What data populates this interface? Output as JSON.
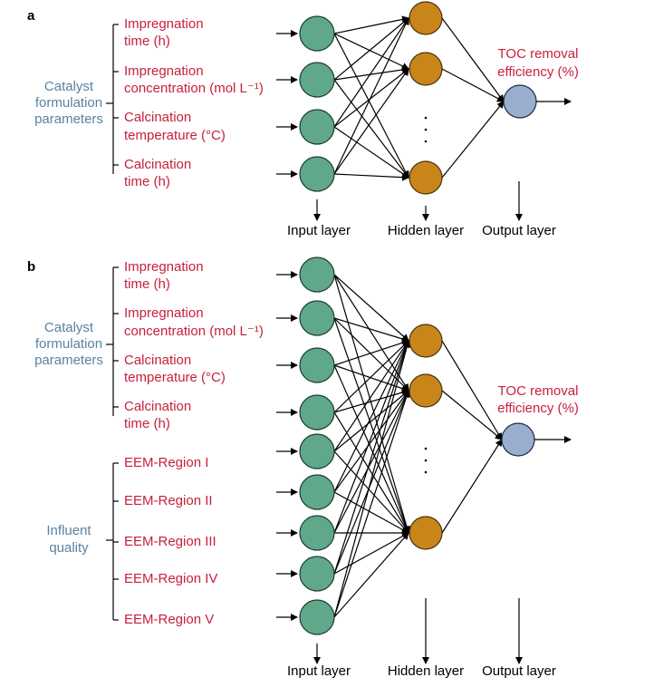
{
  "panels": [
    {
      "label": "a",
      "groups": [
        {
          "label": [
            "Catalyst",
            "formulation",
            "parameters"
          ],
          "inputs": [
            [
              "Impregnation",
              "time (h)"
            ],
            [
              "Impregnation",
              "concentration (mol L⁻¹)"
            ],
            [
              "Calcination",
              "temperature (°C)"
            ],
            [
              "Calcination",
              "time (h)"
            ]
          ]
        }
      ],
      "output": [
        "TOC removal",
        "efficiency (%)"
      ],
      "layers": [
        "Input layer",
        "Hidden layer",
        "Output layer"
      ]
    },
    {
      "label": "b",
      "groups": [
        {
          "label": [
            "Catalyst",
            "formulation",
            "parameters"
          ],
          "inputs": [
            [
              "Impregnation",
              "time (h)"
            ],
            [
              "Impregnation",
              "concentration (mol L⁻¹)"
            ],
            [
              "Calcination",
              "temperature (°C)"
            ],
            [
              "Calcination",
              "time (h)"
            ]
          ]
        },
        {
          "label": [
            "Influent",
            "quality"
          ],
          "inputs": [
            [
              "EEM-Region I"
            ],
            [
              "EEM-Region II"
            ],
            [
              "EEM-Region III"
            ],
            [
              "EEM-Region IV"
            ],
            [
              "EEM-Region V"
            ]
          ]
        }
      ],
      "output": [
        "TOC removal",
        "efficiency (%)"
      ],
      "layers": [
        "Input layer",
        "Hidden layer",
        "Output layer"
      ]
    }
  ]
}
